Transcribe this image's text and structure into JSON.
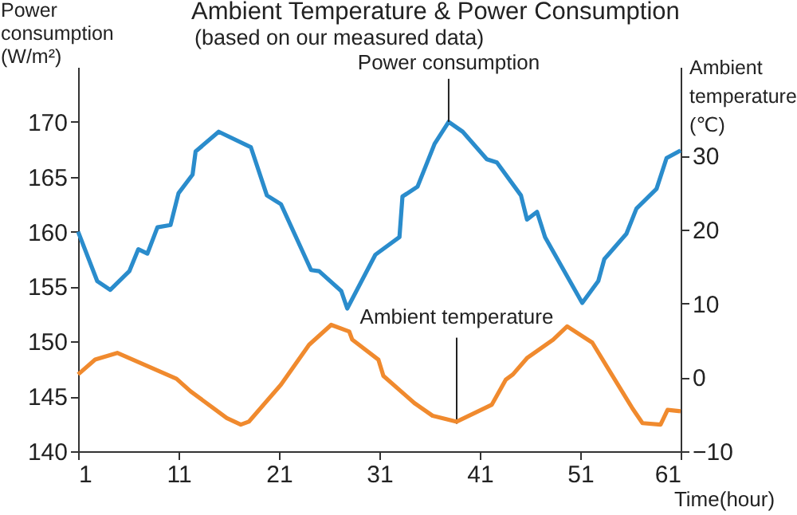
{
  "chart_data": {
    "type": "line",
    "title": "Ambient Temperature & Power Consumption",
    "subtitle": "(based on our measured data)",
    "xlabel": "Time(hour)",
    "ylabel": "Power consumption (W/m²)",
    "y2label": "Ambient temperature (℃)",
    "xlim": [
      1,
      61
    ],
    "xticks": [
      1,
      11,
      21,
      31,
      41,
      51,
      61
    ],
    "ylim": [
      140,
      175
    ],
    "yticks": [
      140,
      145,
      150,
      155,
      160,
      165,
      170
    ],
    "y2lim": [
      -10,
      42
    ],
    "y2ticks": [
      -10,
      0,
      10,
      20,
      30
    ],
    "grid": false,
    "series": [
      {
        "color": "#2a8ccc",
        "x": [
          1,
          2.9,
          4.2,
          6.1,
          7.0,
          7.9,
          8.9,
          10.2,
          11.0,
          12.4,
          12.7,
          15.0,
          18.2,
          19.8,
          21.2,
          24.2,
          25.0,
          27.2,
          27.8,
          30.6,
          33.0,
          33.3,
          34.8,
          36.5,
          37.9,
          39.3,
          41.7,
          42.7,
          45.1,
          45.7,
          46.7,
          47.5,
          51.2,
          52.8,
          53.4,
          55.6,
          56.6,
          58.6,
          59.6,
          61.0
        ],
        "values": [
          160.0,
          155.5,
          154.7,
          156.4,
          158.4,
          158.0,
          160.4,
          160.6,
          163.5,
          165.2,
          167.3,
          169.1,
          167.7,
          163.3,
          162.5,
          156.5,
          156.4,
          154.6,
          153.0,
          157.9,
          159.5,
          163.2,
          164.1,
          168.0,
          170.0,
          169.1,
          166.6,
          166.3,
          163.3,
          161.1,
          161.8,
          159.5,
          153.5,
          155.5,
          157.5,
          159.8,
          162.1,
          163.9,
          166.7,
          167.4
        ]
      },
      {
        "color": "#f08a2e",
        "axis": "y2",
        "x": [
          1,
          2.7,
          4.9,
          10.8,
          12.2,
          15.8,
          17.2,
          18.0,
          21.2,
          24.0,
          26.2,
          28.0,
          28.3,
          30.9,
          31.4,
          34.5,
          36.3,
          38.7,
          42.2,
          43.6,
          44.3,
          45.7,
          48.3,
          49.7,
          52.2,
          56.2,
          57.2,
          59.0,
          59.7,
          61.0
        ],
        "values": [
          0.4,
          2.4,
          3.3,
          -0.2,
          -1.9,
          -5.5,
          -6.4,
          -6.0,
          -1.0,
          4.4,
          7.1,
          6.2,
          5.1,
          2.4,
          0.2,
          -3.5,
          -5.2,
          -6.0,
          -3.7,
          -0.3,
          0.4,
          2.6,
          5.1,
          6.9,
          4.7,
          -4.2,
          -6.2,
          -6.4,
          -4.4,
          -4.6
        ]
      }
    ],
    "annotations": [
      {
        "text": "Power consumption",
        "x": 37.9,
        "y": 170.0
      },
      {
        "text": "Ambient temperature",
        "x": 38.7,
        "y": 142.5
      }
    ]
  }
}
